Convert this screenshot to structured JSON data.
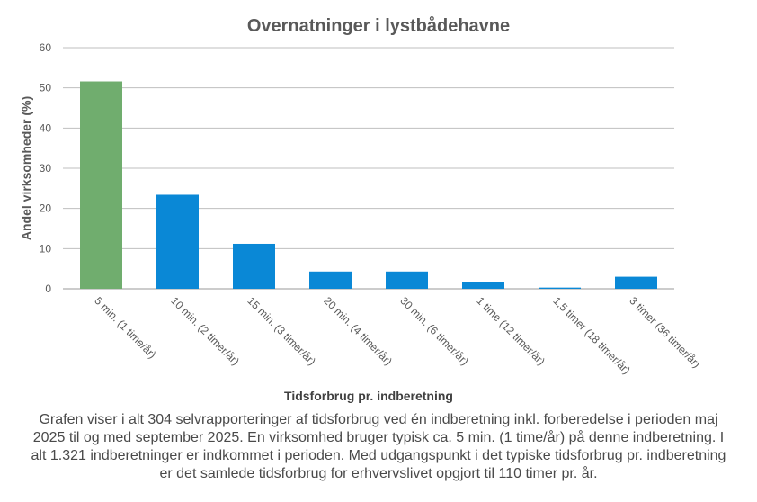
{
  "chart_data": {
    "type": "bar",
    "title": "Overnatninger  i lystbådehavne",
    "xlabel": "Tidsforbrug pr. indberetning",
    "ylabel": "Andel virksomheder  (%)",
    "ylim": [
      0,
      60
    ],
    "yticks": [
      0,
      10,
      20,
      30,
      40,
      50,
      60
    ],
    "grid": true,
    "legend": "none",
    "categories": [
      "5 min. (1 time/år)",
      "10 min. (2 timer/år)",
      "15 min. (3 timer/år)",
      "20 min. (4 timer/år)",
      "30 min. (6 timer/år)",
      "1 time (12 timer/år)",
      "1,5 timer (18 timer/år)",
      "3 timer (36 timer/år)"
    ],
    "values": [
      51.6,
      23.4,
      11.2,
      4.3,
      4.3,
      1.6,
      0.3,
      3.0
    ],
    "highlight_index": 0,
    "colors": {
      "highlight": "#70ad6e",
      "bar": "#0a88d6",
      "title": "#595959",
      "axis_text": "#595959",
      "grid": "#bfbfbf"
    }
  },
  "caption": "Grafen viser i alt 304 selvrapporteringer af tidsforbrug  ved én indberetning inkl. forberedelse i perioden maj 2025 til  og med september 2025. En virksomhed bruger typisk  ca. 5 min. (1 time/år) på denne indberetning. I alt 1.321 indberetninger er indkommet i perioden. Med udgangspunkt i det typiske tidsforbrug  pr. indberetning  er det samlede tidsforbrug  for erhvervslivet  opgjort til  110 timer pr. år."
}
